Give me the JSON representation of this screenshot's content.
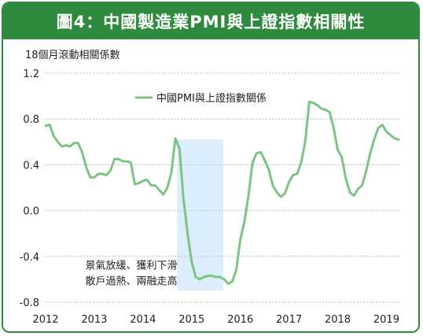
{
  "header": {
    "title": "圖4：中國製造業PMI與上證指數相關性"
  },
  "chart_data": {
    "type": "line",
    "title": "圖4：中國製造業PMI與上證指數相關性",
    "ylabel": "18個月滾動相關係數",
    "xlabel": "",
    "ylim": [
      -0.8,
      1.2
    ],
    "yticks": [
      "1.2",
      "0.8",
      "0.4",
      "0.0",
      "-0.4",
      "-0.8"
    ],
    "ytick_values": [
      1.2,
      0.8,
      0.4,
      0.0,
      -0.4,
      -0.8
    ],
    "xticks": [
      "2012",
      "2013",
      "2014",
      "2015",
      "2016",
      "2017",
      "2018",
      "2019"
    ],
    "xtick_values": [
      2012,
      2013,
      2014,
      2015,
      2016,
      2017,
      2018,
      2019
    ],
    "xlim": [
      2012.0,
      2019.3
    ],
    "grid": "horizontal",
    "legend": "top-center",
    "series": [
      {
        "name": "中國PMI與上證指數關係",
        "color": "#7dc383",
        "x": [
          2012.0,
          2012.083,
          2012.167,
          2012.25,
          2012.333,
          2012.417,
          2012.5,
          2012.583,
          2012.667,
          2012.75,
          2012.833,
          2012.917,
          2013.0,
          2013.083,
          2013.167,
          2013.25,
          2013.333,
          2013.417,
          2013.5,
          2013.583,
          2013.667,
          2013.75,
          2013.833,
          2013.917,
          2014.0,
          2014.083,
          2014.167,
          2014.25,
          2014.333,
          2014.417,
          2014.5,
          2014.583,
          2014.667,
          2014.75,
          2014.833,
          2014.917,
          2015.0,
          2015.083,
          2015.167,
          2015.25,
          2015.333,
          2015.417,
          2015.5,
          2015.583,
          2015.667,
          2015.75,
          2015.833,
          2015.917,
          2016.0,
          2016.083,
          2016.167,
          2016.25,
          2016.333,
          2016.417,
          2016.5,
          2016.583,
          2016.667,
          2016.75,
          2016.833,
          2016.917,
          2017.0,
          2017.083,
          2017.167,
          2017.25,
          2017.333,
          2017.417,
          2017.5,
          2017.583,
          2017.667,
          2017.75,
          2017.833,
          2017.917,
          2018.0,
          2018.083,
          2018.167,
          2018.25,
          2018.333,
          2018.417,
          2018.5,
          2018.583,
          2018.667,
          2018.75,
          2018.833,
          2018.917,
          2019.0,
          2019.083,
          2019.167,
          2019.25
        ],
        "values": [
          0.74,
          0.75,
          0.65,
          0.6,
          0.56,
          0.57,
          0.56,
          0.59,
          0.59,
          0.51,
          0.38,
          0.29,
          0.29,
          0.32,
          0.32,
          0.31,
          0.35,
          0.45,
          0.45,
          0.43,
          0.43,
          0.42,
          0.23,
          0.24,
          0.26,
          0.27,
          0.22,
          0.22,
          0.18,
          0.14,
          0.2,
          0.33,
          0.63,
          0.54,
          0.1,
          -0.2,
          -0.45,
          -0.58,
          -0.6,
          -0.58,
          -0.57,
          -0.57,
          -0.58,
          -0.58,
          -0.6,
          -0.64,
          -0.62,
          -0.52,
          -0.25,
          -0.1,
          0.13,
          0.42,
          0.5,
          0.51,
          0.44,
          0.36,
          0.22,
          0.16,
          0.12,
          0.15,
          0.25,
          0.31,
          0.32,
          0.42,
          0.6,
          0.95,
          0.94,
          0.92,
          0.89,
          0.88,
          0.86,
          0.72,
          0.53,
          0.47,
          0.28,
          0.16,
          0.13,
          0.19,
          0.22,
          0.34,
          0.5,
          0.62,
          0.72,
          0.75,
          0.69,
          0.66,
          0.63,
          0.62
        ]
      }
    ],
    "shaded_region": {
      "x": [
        2014.7,
        2015.65
      ],
      "y": [
        -0.7,
        0.62
      ],
      "color": "#dceefb"
    },
    "annotation": {
      "lines": [
        "景氣放緩、獲利下滑",
        "散戶過熱、兩融走高"
      ],
      "x": 2014.85,
      "y": -0.48
    }
  }
}
